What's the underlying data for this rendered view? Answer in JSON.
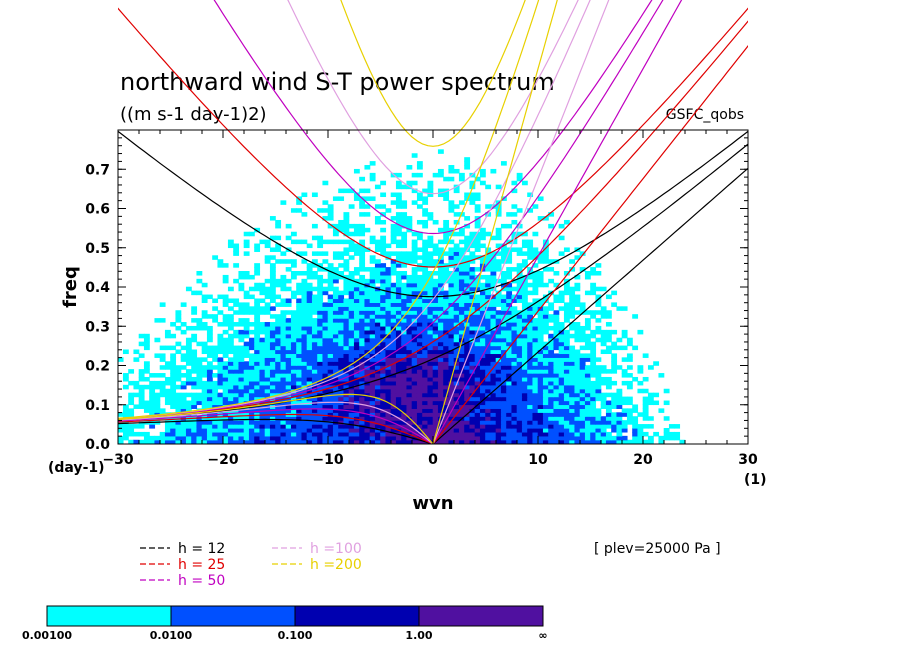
{
  "chart_data": {
    "type": "heatmap",
    "title": "northward wind S-T power spectrum",
    "subtitle": "((m s-1 day-1)2)",
    "model": "GSFC_qobs",
    "xlabel": "wvn",
    "ylabel": "freq",
    "x_unit": "(1)",
    "y_unit": "(day-1)",
    "xlim": [
      -30,
      30
    ],
    "ylim": [
      0,
      0.8
    ],
    "x_ticks": [
      -30,
      -20,
      -10,
      0,
      10,
      20,
      30
    ],
    "x_tick_labels": [
      "−30",
      "−20",
      "−10",
      "0",
      "10",
      "20",
      "30"
    ],
    "y_ticks": [
      0.0,
      0.1,
      0.2,
      0.3,
      0.4,
      0.5,
      0.6,
      0.7
    ],
    "y_tick_labels": [
      "0.0",
      "0.1",
      "0.2",
      "0.3",
      "0.4",
      "0.5",
      "0.6",
      "0.7"
    ],
    "plev_note": "[ plev=25000 Pa ]",
    "dispersion_curves": [
      {
        "label": "h = 12",
        "h": 12,
        "color": "#000000"
      },
      {
        "label": "h = 25",
        "h": 25,
        "color": "#e00000"
      },
      {
        "label": "h = 50",
        "h": 50,
        "color": "#c000c0"
      },
      {
        "label": "h =100",
        "h": 100,
        "color": "#e0a0e0"
      },
      {
        "label": "h =200",
        "h": 200,
        "color": "#e8d000"
      }
    ],
    "colorbar": {
      "levels": [
        "0.00100",
        "0.0100",
        "0.100",
        "1.00",
        "∞"
      ],
      "colors": [
        "#00ffff",
        "#0050ff",
        "#0000b0",
        "#5010a0"
      ]
    }
  }
}
